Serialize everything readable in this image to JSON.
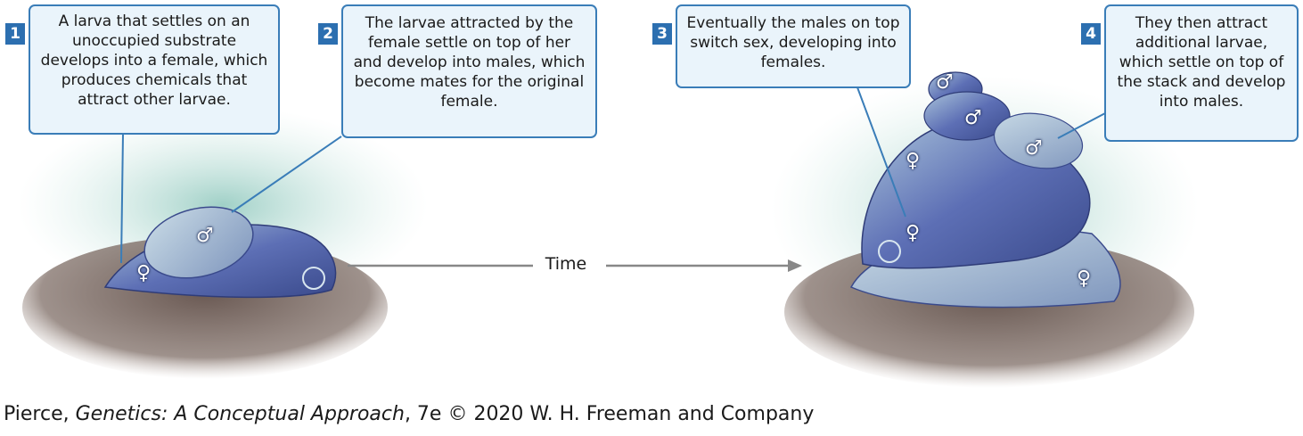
{
  "steps": [
    {
      "number": "1",
      "text": "A larva that settles on an unoccupied substrate develops into a female, which produces chemicals that attract other larvae."
    },
    {
      "number": "2",
      "text": "The larvae attracted by the female settle on top of her and develop into males, which become mates for the original female."
    },
    {
      "number": "3",
      "text": "Eventually the males on top switch sex, developing into females."
    },
    {
      "number": "4",
      "text": "They then attract additional larvae, which settle on top of the stack and develop into males."
    }
  ],
  "time_label": "Time",
  "sex_symbols": {
    "female": "♀",
    "male": "♂"
  },
  "credit": {
    "author": "Pierce, ",
    "book": "Genetics: A Conceptual Approach",
    "rest": ", 7e © 2020 W. H. Freeman and Company"
  },
  "colors": {
    "callout_border": "#3a7db8",
    "callout_fill": "#eaf4fb",
    "step_badge": "#2c6fb0",
    "substrate": "#6e5e58",
    "shell": "#5c6fb8",
    "water": "#9fd0c6"
  }
}
